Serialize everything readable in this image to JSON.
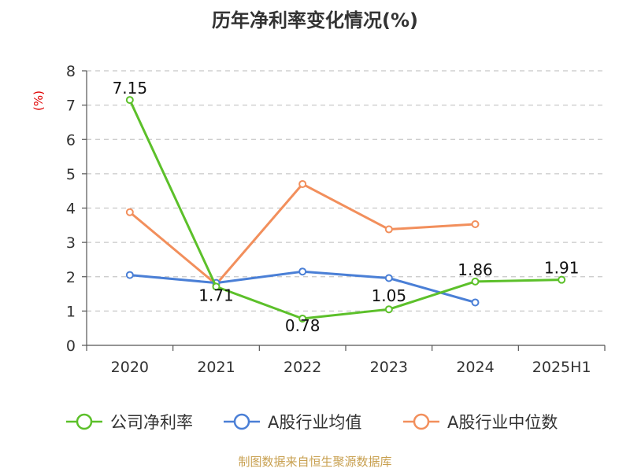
{
  "chart_data": {
    "type": "line",
    "title": "历年净利率变化情况(%)",
    "ylabel": "(%)",
    "xlabel": "",
    "categories": [
      "2020",
      "2021",
      "2022",
      "2023",
      "2024",
      "2025H1"
    ],
    "ylim": [
      0,
      8
    ],
    "yticks": [
      0,
      1,
      2,
      3,
      4,
      5,
      6,
      7,
      8
    ],
    "grid": true,
    "legend_position": "bottom",
    "series": [
      {
        "name": "公司净利率",
        "color": "#5cc02a",
        "values": [
          7.15,
          1.71,
          0.78,
          1.05,
          1.86,
          1.91
        ],
        "labels": [
          "7.15",
          "1.71",
          "0.78",
          "1.05",
          "1.86",
          "1.91"
        ]
      },
      {
        "name": "A股行业均值",
        "color": "#4a7fd6",
        "values": [
          2.05,
          1.82,
          2.15,
          1.96,
          1.25,
          null
        ]
      },
      {
        "name": "A股行业中位数",
        "color": "#f28f5c",
        "values": [
          3.88,
          1.78,
          4.7,
          3.38,
          3.53,
          null
        ]
      }
    ]
  },
  "source": "制图数据来自恒生聚源数据库"
}
